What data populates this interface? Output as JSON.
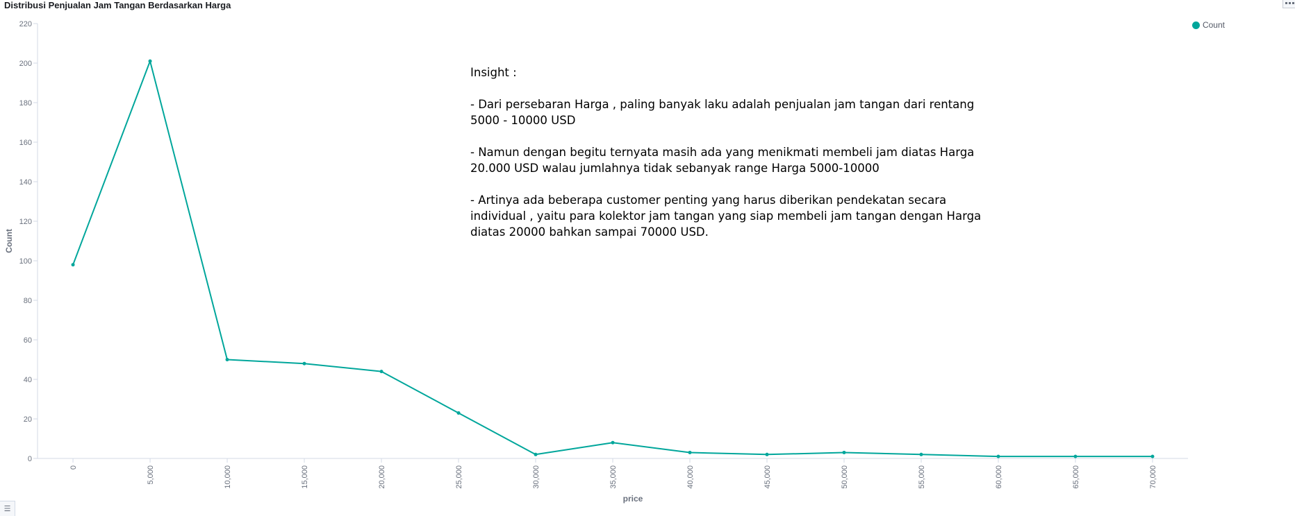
{
  "panel": {
    "title": "Distribusi Penjualan Jam Tangan Berdasarkan Harga"
  },
  "legend": {
    "items": [
      {
        "label": "Count",
        "color": "#00a69b"
      }
    ]
  },
  "insight": {
    "heading": "Insight :",
    "paragraphs": [
      "- Dari persebaran Harga , paling banyak laku adalah penjualan jam tangan dari rentang 5000 - 10000 USD",
      "- Namun dengan begitu ternyata masih ada yang menikmati membeli jam diatas Harga 20.000 USD walau jumlahnya tidak sebanyak range Harga 5000-10000",
      "- Artinya ada beberapa customer penting yang harus diberikan pendekatan secara individual , yaitu para kolektor jam tangan yang siap membeli jam tangan dengan Harga diatas 20000 bahkan sampai 70000 USD."
    ]
  },
  "chart_data": {
    "type": "line",
    "title": "Distribusi Penjualan Jam Tangan Berdasarkan Harga",
    "xlabel": "price",
    "ylabel": "Count",
    "x": [
      0,
      5000,
      10000,
      15000,
      20000,
      25000,
      30000,
      35000,
      40000,
      45000,
      50000,
      55000,
      60000,
      65000,
      70000
    ],
    "x_tick_labels": [
      "0",
      "5,000",
      "10,000",
      "15,000",
      "20,000",
      "25,000",
      "30,000",
      "35,000",
      "40,000",
      "45,000",
      "50,000",
      "55,000",
      "60,000",
      "65,000",
      "70,000"
    ],
    "series": [
      {
        "name": "Count",
        "color": "#00a69b",
        "values": [
          98,
          201,
          50,
          48,
          44,
          23,
          2,
          8,
          3,
          2,
          3,
          2,
          1,
          1,
          1
        ]
      }
    ],
    "ylim": [
      0,
      220
    ],
    "y_ticks": [
      0,
      20,
      40,
      60,
      80,
      100,
      120,
      140,
      160,
      180,
      200,
      220
    ],
    "xlim": [
      -2300,
      72300
    ],
    "grid": false,
    "legend_position": "top-right",
    "axis_color": "#d3dae6",
    "tick_text_color": "#69707d"
  }
}
